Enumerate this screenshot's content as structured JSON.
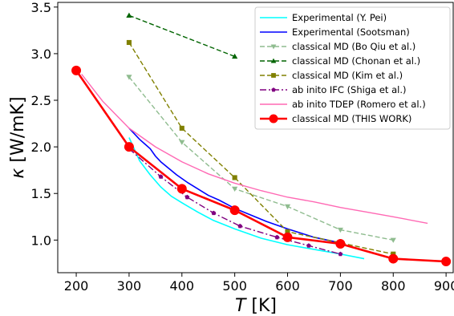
{
  "chart_data": {
    "type": "line",
    "xlabel_main": "T",
    "xlabel_unit": " [K]",
    "ylabel_main": "κ",
    "ylabel_unit": " [W/mK]",
    "xlim": [
      165,
      915
    ],
    "ylim": [
      0.65,
      3.55
    ],
    "xticks": [
      200,
      300,
      400,
      500,
      600,
      700,
      800,
      900
    ],
    "yticks": [
      1.0,
      1.5,
      2.0,
      2.5,
      3.0,
      3.5
    ],
    "ytick_labels": [
      "1.0",
      "1.5",
      "2.0",
      "2.5",
      "3.0",
      "3.5"
    ],
    "grid": false,
    "legend_position": "top-right",
    "series": [
      {
        "name": "Experimental (Y. Pei)",
        "color": "#00ffff",
        "dash": "",
        "marker": "none",
        "width": 1.6,
        "x": [
          300,
          320,
          340,
          360,
          380,
          400,
          430,
          460,
          500,
          550,
          600,
          650,
          700,
          745
        ],
        "y": [
          2.1,
          1.85,
          1.7,
          1.57,
          1.47,
          1.4,
          1.3,
          1.21,
          1.12,
          1.02,
          0.95,
          0.9,
          0.85,
          0.8
        ]
      },
      {
        "name": "Experimental (Sootsman)",
        "color": "#0000ff",
        "dash": "",
        "marker": "none",
        "width": 1.6,
        "x": [
          300,
          310,
          320,
          330,
          340,
          350,
          360,
          375,
          390,
          410,
          430,
          450,
          470,
          500,
          530,
          560,
          600,
          650,
          700
        ],
        "y": [
          2.2,
          2.14,
          2.08,
          2.03,
          1.98,
          1.9,
          1.84,
          1.77,
          1.7,
          1.62,
          1.55,
          1.48,
          1.43,
          1.34,
          1.27,
          1.2,
          1.12,
          1.03,
          0.97
        ]
      },
      {
        "name": "classical MD (Bo Qiu et al.)",
        "color": "#8fbc8f",
        "dash": "6,3",
        "marker": "triangle-down",
        "width": 1.4,
        "x": [
          300,
          400,
          500,
          600,
          700,
          800
        ],
        "y": [
          2.75,
          2.05,
          1.55,
          1.36,
          1.11,
          1.0
        ]
      },
      {
        "name": "classical MD (Chonan et al.)",
        "color": "#006400",
        "dash": "6,3",
        "marker": "triangle-up",
        "width": 1.4,
        "x": [
          300,
          500
        ],
        "y": [
          3.41,
          2.97
        ]
      },
      {
        "name": "classical MD (Kim et al.)",
        "color": "#808000",
        "dash": "6,3",
        "marker": "square",
        "width": 1.4,
        "x": [
          300,
          400,
          500,
          600,
          800
        ],
        "y": [
          3.12,
          2.2,
          1.67,
          1.09,
          0.85
        ]
      },
      {
        "name": "ab inito IFC (Shiga et al.)",
        "color": "#800080",
        "dash": "8,3,2,3",
        "marker": "pentagon",
        "width": 1.4,
        "x": [
          300,
          360,
          410,
          460,
          510,
          580,
          640,
          700
        ],
        "y": [
          1.98,
          1.68,
          1.46,
          1.29,
          1.15,
          1.03,
          0.94,
          0.85
        ]
      },
      {
        "name": "ab inito TDEP (Romero et al.)",
        "color": "#ff69b4",
        "dash": "",
        "marker": "none",
        "width": 1.4,
        "x": [
          210,
          250,
          300,
          350,
          400,
          450,
          500,
          550,
          600,
          650,
          700,
          750,
          800,
          865
        ],
        "y": [
          2.78,
          2.49,
          2.2,
          2.0,
          1.84,
          1.71,
          1.61,
          1.53,
          1.46,
          1.41,
          1.35,
          1.3,
          1.25,
          1.18
        ]
      },
      {
        "name": "classical MD (THIS WORK)",
        "color": "#ff0000",
        "dash": "",
        "marker": "circle",
        "width": 2.6,
        "x": [
          200,
          300,
          400,
          500,
          600,
          700,
          800,
          900
        ],
        "y": [
          2.82,
          2.0,
          1.55,
          1.32,
          1.03,
          0.96,
          0.8,
          0.77
        ]
      }
    ]
  }
}
